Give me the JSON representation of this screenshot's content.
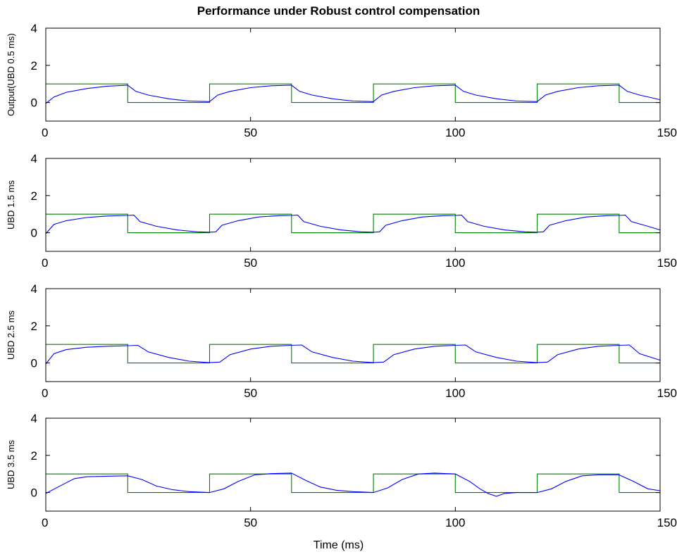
{
  "title": "Performance under Robust control compensation",
  "xlabel": "Time (ms)",
  "colors": {
    "reference": "#008000",
    "output": "#0000ff",
    "axes": "#000000",
    "background": "#ffffff"
  },
  "chart_data": [
    {
      "type": "line",
      "ylabel": "Output(UBD 0.5 ms)",
      "xlim": [
        0,
        150
      ],
      "ylim": [
        -1,
        4
      ],
      "xticks": [
        0,
        50,
        100,
        150
      ],
      "yticks": [
        0,
        2,
        4
      ],
      "grid": false,
      "series": [
        {
          "color": "#008000",
          "x": [
            0,
            20,
            20,
            40,
            40,
            60,
            60,
            80,
            80,
            100,
            100,
            120,
            120,
            140,
            140,
            150
          ],
          "y": [
            1,
            1,
            0,
            0,
            1,
            1,
            0,
            0,
            1,
            1,
            0,
            0,
            1,
            1,
            0,
            0
          ]
        },
        {
          "color": "#0000ff",
          "x": [
            0,
            2,
            5,
            10,
            15,
            20,
            22,
            25,
            30,
            35,
            40,
            42,
            45,
            50,
            55,
            60,
            62,
            65,
            70,
            75,
            80,
            82,
            85,
            90,
            95,
            100,
            102,
            105,
            110,
            115,
            120,
            122,
            125,
            130,
            135,
            140,
            142,
            145,
            150
          ],
          "y": [
            -0.05,
            0.3,
            0.55,
            0.75,
            0.88,
            0.93,
            0.6,
            0.4,
            0.2,
            0.08,
            0.05,
            0.4,
            0.6,
            0.8,
            0.9,
            0.93,
            0.6,
            0.4,
            0.2,
            0.08,
            0.05,
            0.4,
            0.6,
            0.8,
            0.9,
            0.93,
            0.6,
            0.4,
            0.2,
            0.08,
            0.05,
            0.4,
            0.6,
            0.8,
            0.9,
            0.93,
            0.6,
            0.4,
            0.15
          ]
        }
      ]
    },
    {
      "type": "line",
      "ylabel": "UBD 1.5 ms",
      "xlim": [
        0,
        150
      ],
      "ylim": [
        -1,
        4
      ],
      "xticks": [
        0,
        50,
        100,
        150
      ],
      "yticks": [
        0,
        2,
        4
      ],
      "grid": false,
      "series": [
        {
          "color": "#008000",
          "x": [
            0,
            20,
            20,
            40,
            40,
            60,
            60,
            80,
            80,
            100,
            100,
            120,
            120,
            140,
            140,
            150
          ],
          "y": [
            1,
            1,
            0,
            0,
            1,
            1,
            0,
            0,
            1,
            1,
            0,
            0,
            1,
            1,
            0,
            0
          ]
        },
        {
          "color": "#0000ff",
          "x": [
            0,
            2,
            5,
            10,
            15,
            20,
            21.5,
            23,
            27,
            32,
            37,
            40,
            41.5,
            43,
            47,
            52,
            57,
            60,
            61.5,
            63,
            67,
            72,
            77,
            80,
            81.5,
            83,
            87,
            92,
            97,
            100,
            101.5,
            103,
            107,
            112,
            117,
            120,
            121.5,
            123,
            127,
            132,
            137,
            140,
            141.5,
            143,
            147,
            150
          ],
          "y": [
            -0.05,
            0.45,
            0.65,
            0.82,
            0.9,
            0.93,
            0.95,
            0.6,
            0.35,
            0.15,
            0.05,
            0.03,
            0.05,
            0.4,
            0.65,
            0.85,
            0.92,
            0.93,
            0.95,
            0.6,
            0.35,
            0.15,
            0.05,
            0.03,
            0.05,
            0.4,
            0.65,
            0.85,
            0.92,
            0.93,
            0.95,
            0.6,
            0.35,
            0.15,
            0.05,
            0.03,
            0.05,
            0.4,
            0.65,
            0.85,
            0.92,
            0.93,
            0.95,
            0.6,
            0.35,
            0.15
          ]
        }
      ]
    },
    {
      "type": "line",
      "ylabel": "UBD 2.5 ms",
      "xlim": [
        0,
        150
      ],
      "ylim": [
        -1,
        4
      ],
      "xticks": [
        0,
        50,
        100,
        150
      ],
      "yticks": [
        0,
        2,
        4
      ],
      "grid": false,
      "series": [
        {
          "color": "#008000",
          "x": [
            0,
            20,
            20,
            40,
            40,
            60,
            60,
            80,
            80,
            100,
            100,
            120,
            120,
            140,
            140,
            150
          ],
          "y": [
            1,
            1,
            0,
            0,
            1,
            1,
            0,
            0,
            1,
            1,
            0,
            0,
            1,
            1,
            0,
            0
          ]
        },
        {
          "color": "#0000ff",
          "x": [
            0,
            2,
            5,
            10,
            15,
            20,
            22.5,
            25,
            30,
            35,
            40,
            42.5,
            45,
            50,
            55,
            60,
            62.5,
            65,
            70,
            75,
            80,
            82.5,
            85,
            90,
            95,
            100,
            102.5,
            105,
            110,
            115,
            120,
            122.5,
            125,
            130,
            135,
            140,
            142.5,
            145,
            150
          ],
          "y": [
            -0.05,
            0.5,
            0.72,
            0.85,
            0.9,
            0.93,
            0.95,
            0.6,
            0.3,
            0.1,
            0.02,
            0.05,
            0.45,
            0.75,
            0.9,
            0.95,
            0.97,
            0.6,
            0.3,
            0.1,
            0.02,
            0.05,
            0.45,
            0.75,
            0.9,
            0.95,
            0.97,
            0.6,
            0.3,
            0.1,
            0.02,
            0.05,
            0.45,
            0.75,
            0.9,
            0.95,
            0.97,
            0.5,
            0.15
          ]
        }
      ]
    },
    {
      "type": "line",
      "ylabel": "UBD 3.5 ms",
      "xlim": [
        0,
        150
      ],
      "ylim": [
        -1,
        4
      ],
      "xticks": [
        0,
        50,
        100,
        150
      ],
      "yticks": [
        0,
        2,
        4
      ],
      "grid": false,
      "series": [
        {
          "color": "#008000",
          "x": [
            0,
            20,
            20,
            40,
            40,
            60,
            60,
            80,
            80,
            100,
            100,
            120,
            120,
            140,
            140,
            150
          ],
          "y": [
            1,
            1,
            0,
            0,
            1,
            1,
            0,
            0,
            1,
            1,
            0,
            0,
            1,
            1,
            0,
            0
          ]
        },
        {
          "color": "#0000ff",
          "x": [
            0,
            3,
            7,
            10,
            15,
            20,
            23.5,
            27,
            31,
            35,
            40,
            43.5,
            47,
            51,
            55,
            60,
            63.5,
            67,
            71,
            75,
            80,
            83.5,
            87,
            91,
            95,
            100,
            103.5,
            106,
            108,
            110,
            112,
            115,
            120,
            123.5,
            127,
            131,
            135,
            140,
            143.5,
            147,
            150
          ],
          "y": [
            -0.05,
            0.3,
            0.75,
            0.85,
            0.88,
            0.9,
            0.7,
            0.35,
            0.15,
            0.05,
            0.0,
            0.2,
            0.6,
            0.95,
            1.02,
            1.05,
            0.65,
            0.3,
            0.12,
            0.05,
            0.0,
            0.25,
            0.7,
            1.0,
            1.05,
            1.0,
            0.6,
            0.2,
            -0.05,
            -0.2,
            -0.05,
            0.0,
            0.0,
            0.2,
            0.6,
            0.9,
            0.95,
            0.95,
            0.6,
            0.2,
            0.1
          ]
        }
      ]
    }
  ]
}
